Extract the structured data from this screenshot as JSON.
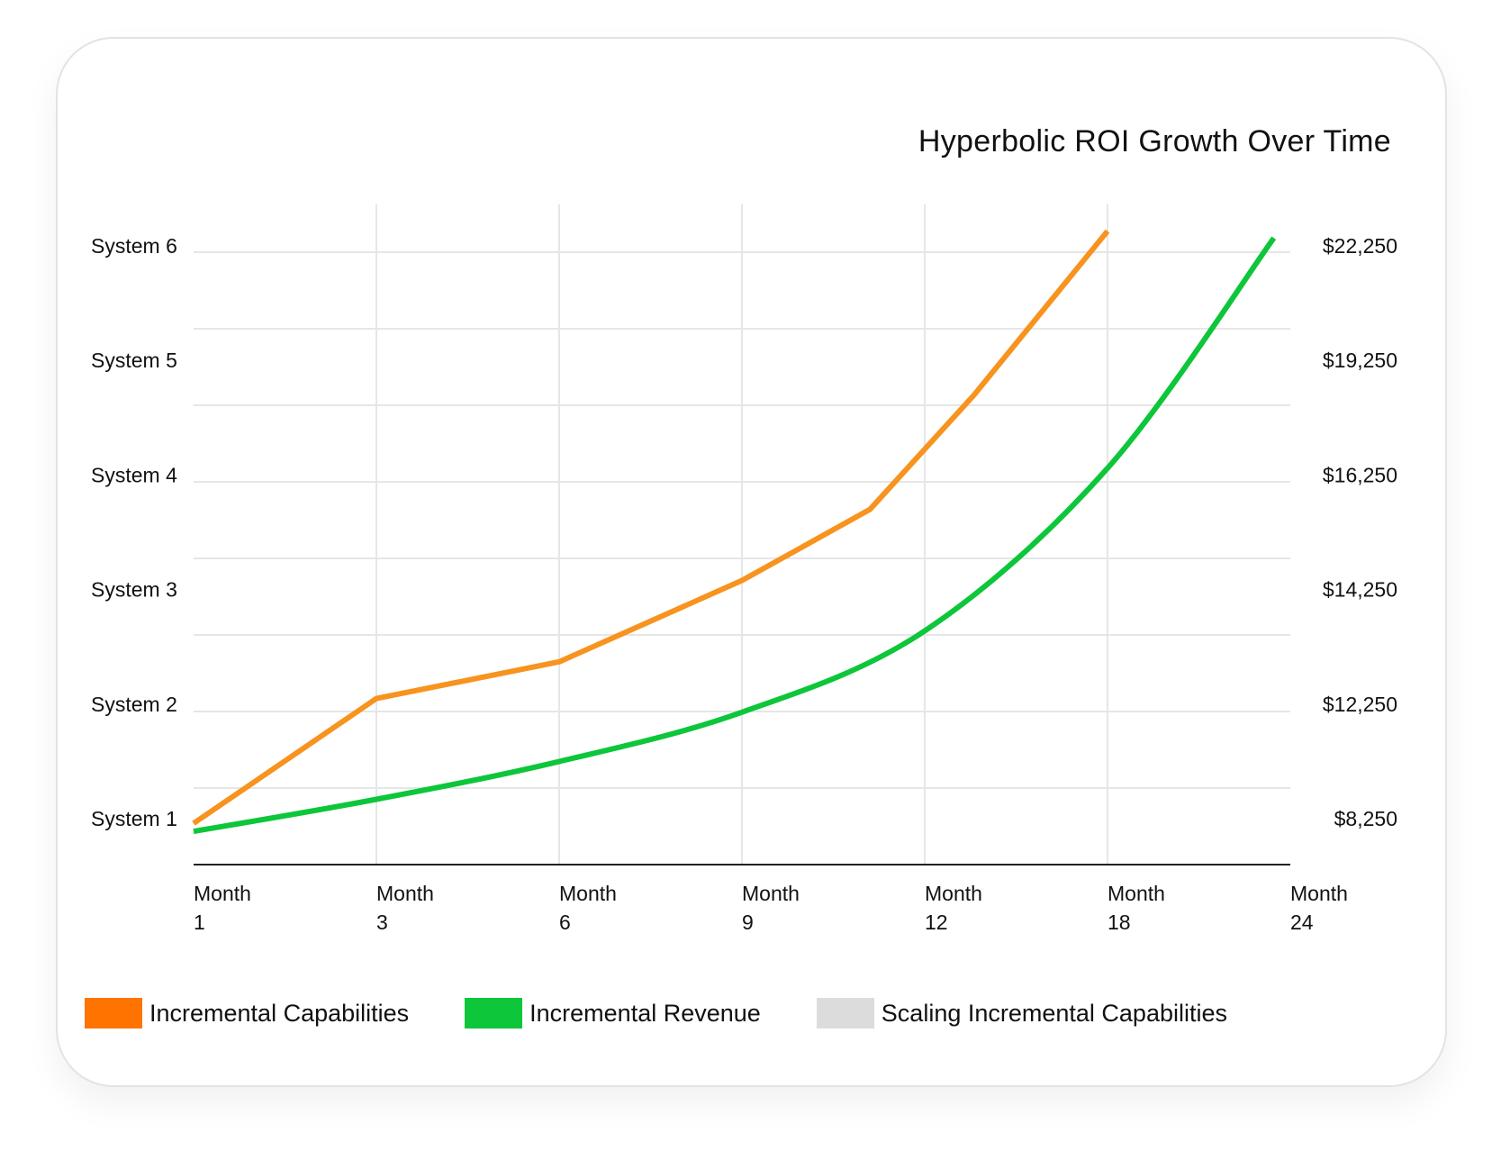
{
  "chart_data": {
    "type": "line",
    "title": "Hyperbolic ROI Growth Over Time",
    "categories": [
      "Month 1",
      "Month 3",
      "Month 6",
      "Month 9",
      "Month 12",
      "Month 18",
      "Month 24"
    ],
    "x_tick_labels": [
      [
        "Month",
        "1"
      ],
      [
        "Month",
        "3"
      ],
      [
        "Month",
        "6"
      ],
      [
        "Month",
        "9"
      ],
      [
        "Month",
        "12"
      ],
      [
        "Month",
        "18"
      ],
      [
        "Month",
        "24"
      ]
    ],
    "y_left_tick_labels": [
      "System 1",
      "System 2",
      "System 3",
      "System 4",
      "System 5",
      "System 6"
    ],
    "y_right_tick_labels": [
      "$8,250",
      "$12,250",
      "$14,250",
      "$16,250",
      "$19,250",
      "$22,250"
    ],
    "y_left_range": [
      0.75,
      6.1
    ],
    "grid": true,
    "legend_position": "bottom",
    "series": [
      {
        "name": "Incremental Capabilities",
        "color": "#F7931E",
        "points": [
          {
            "x": 0,
            "y": 0.86
          },
          {
            "x": 1,
            "y": 1.95
          },
          {
            "x": 2,
            "y": 2.27
          },
          {
            "x": 3,
            "y": 2.98
          },
          {
            "x": 3.7,
            "y": 3.6
          },
          {
            "x": 4.27,
            "y": 4.6
          },
          {
            "x": 5,
            "y": 6.03
          }
        ]
      },
      {
        "name": "Incremental Revenue",
        "color": "#0DC63A",
        "points": [
          {
            "x": 0,
            "y": 0.79
          },
          {
            "x": 1,
            "y": 1.07
          },
          {
            "x": 2,
            "y": 1.4
          },
          {
            "x": 3,
            "y": 1.83
          },
          {
            "x": 4,
            "y": 2.54
          },
          {
            "x": 5,
            "y": 3.96
          },
          {
            "x": 5.91,
            "y": 5.97
          }
        ]
      },
      {
        "name": "Scaling Incremental Capabilities",
        "color": "#DCDCDC",
        "points": []
      }
    ]
  }
}
